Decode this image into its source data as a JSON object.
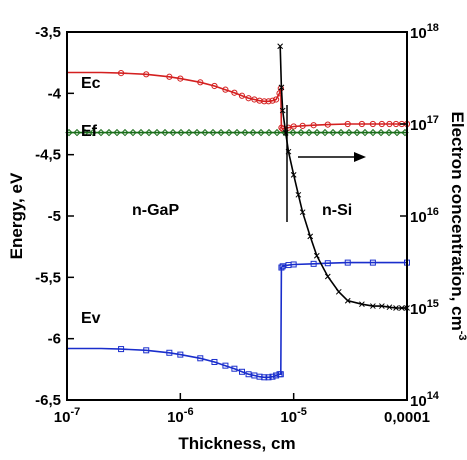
{
  "chart_data": {
    "type": "line",
    "title": "",
    "xlabel": "Thickness, cm",
    "ylabel_left": "Energy, eV",
    "ylabel_right": "Electron concentration, cm",
    "ylabel_right_exp": "-3",
    "x_scale": "log",
    "xlim": [
      1e-07,
      0.0001
    ],
    "ylim_left": [
      -6.5,
      -3.5
    ],
    "ylim_right": [
      100000000000000.0,
      1e+18
    ],
    "y_right_scale": "log",
    "grid": false,
    "x_ticks": [
      {
        "value": 1e-07,
        "base": "10",
        "exp": "-7"
      },
      {
        "value": 1e-06,
        "base": "10",
        "exp": "-6"
      },
      {
        "value": 1e-05,
        "base": "10",
        "exp": "-5"
      },
      {
        "value": 0.0001,
        "text": "0,0001"
      }
    ],
    "y_left_ticks": [
      {
        "value": -3.5,
        "text": "-3,5"
      },
      {
        "value": -4.0,
        "text": "-4"
      },
      {
        "value": -4.5,
        "text": "-4,5"
      },
      {
        "value": -5.0,
        "text": "-5"
      },
      {
        "value": -5.5,
        "text": "-5,5"
      },
      {
        "value": -6.0,
        "text": "-6"
      },
      {
        "value": -6.5,
        "text": "-6,5"
      }
    ],
    "y_right_ticks": [
      {
        "value": 1e+18,
        "base": "10",
        "exp": "18"
      },
      {
        "value": 1e+17,
        "base": "10",
        "exp": "17"
      },
      {
        "value": 1e+16,
        "base": "10",
        "exp": "16"
      },
      {
        "value": 1000000000000000.0,
        "base": "10",
        "exp": "15"
      },
      {
        "value": 100000000000000.0,
        "base": "10",
        "exp": "14"
      }
    ],
    "series": [
      {
        "name": "Ec",
        "axis": "left",
        "color": "#d42020",
        "marker": "circle",
        "x": [
          1e-07,
          2e-07,
          3e-07,
          5e-07,
          8e-07,
          1e-06,
          1.5e-06,
          2e-06,
          2.5e-06,
          3e-06,
          3.5e-06,
          4e-06,
          4.5e-06,
          5e-06,
          5.5e-06,
          6e-06,
          6.5e-06,
          7e-06,
          7.5e-06,
          7.7e-06,
          7.8e-06,
          8e-06,
          9e-06,
          1e-05,
          1.2e-05,
          1.5e-05,
          2e-05,
          3e-05,
          4e-05,
          5e-05,
          6e-05,
          7e-05,
          8e-05,
          9e-05,
          0.0001
        ],
        "y": [
          -3.83,
          -3.83,
          -3.835,
          -3.845,
          -3.865,
          -3.88,
          -3.91,
          -3.94,
          -3.97,
          -3.995,
          -4.02,
          -4.04,
          -4.05,
          -4.06,
          -4.065,
          -4.065,
          -4.06,
          -4.05,
          -4.0,
          -3.96,
          -4.28,
          -4.29,
          -4.28,
          -4.27,
          -4.265,
          -4.26,
          -4.255,
          -4.25,
          -4.25,
          -4.25,
          -4.25,
          -4.25,
          -4.25,
          -4.25,
          -4.25
        ]
      },
      {
        "name": "Ef",
        "axis": "left",
        "color": "#1a6e1a",
        "marker": "diamond",
        "x": [
          1e-07,
          0.0001
        ],
        "y": [
          -4.32,
          -4.32
        ]
      },
      {
        "name": "Ev",
        "axis": "left",
        "color": "#1a2ecc",
        "marker": "square",
        "x": [
          1e-07,
          2e-07,
          3e-07,
          5e-07,
          8e-07,
          1e-06,
          1.5e-06,
          2e-06,
          2.5e-06,
          3e-06,
          3.5e-06,
          4e-06,
          4.5e-06,
          5e-06,
          5.5e-06,
          6e-06,
          6.5e-06,
          7e-06,
          7.5e-06,
          7.7e-06,
          7.8e-06,
          8e-06,
          9e-06,
          1e-05,
          1.5e-05,
          2e-05,
          3e-05,
          5e-05,
          0.0001
        ],
        "y": [
          -6.08,
          -6.08,
          -6.085,
          -6.095,
          -6.115,
          -6.13,
          -6.16,
          -6.19,
          -6.22,
          -6.245,
          -6.27,
          -6.29,
          -6.3,
          -6.31,
          -6.315,
          -6.315,
          -6.31,
          -6.3,
          -6.29,
          -6.29,
          -5.42,
          -5.41,
          -5.4,
          -5.395,
          -5.39,
          -5.385,
          -5.38,
          -5.38,
          -5.38
        ]
      },
      {
        "name": "n",
        "axis": "right",
        "color": "#000000",
        "marker": "x",
        "x": [
          7.6e-06,
          7.8e-06,
          8e-06,
          8.5e-06,
          9e-06,
          1e-05,
          1.1e-05,
          1.2e-05,
          1.4e-05,
          1.6e-05,
          2e-05,
          2.5e-05,
          3e-05,
          4e-05,
          5e-05,
          6e-05,
          7e-05,
          8e-05,
          9e-05,
          0.0001
        ],
        "y": [
          7e+17,
          2.5e+17,
          1.4e+17,
          8e+16,
          5e+16,
          2.8e+16,
          1.7e+16,
          1.1e+16,
          6000000000000000.0,
          3700000000000000.0,
          2200000000000000.0,
          1500000000000000.0,
          1200000000000000.0,
          1100000000000000.0,
          1050000000000000.0,
          1050000000000000.0,
          1020000000000000.0,
          1000000000000000.0,
          1000000000000000.0,
          1000000000000000.0
        ]
      }
    ],
    "annotations": [
      {
        "text": "Ec"
      },
      {
        "text": "Ef"
      },
      {
        "text": "Ev"
      },
      {
        "text": "n-GaP"
      },
      {
        "text": "n-Si"
      }
    ]
  }
}
